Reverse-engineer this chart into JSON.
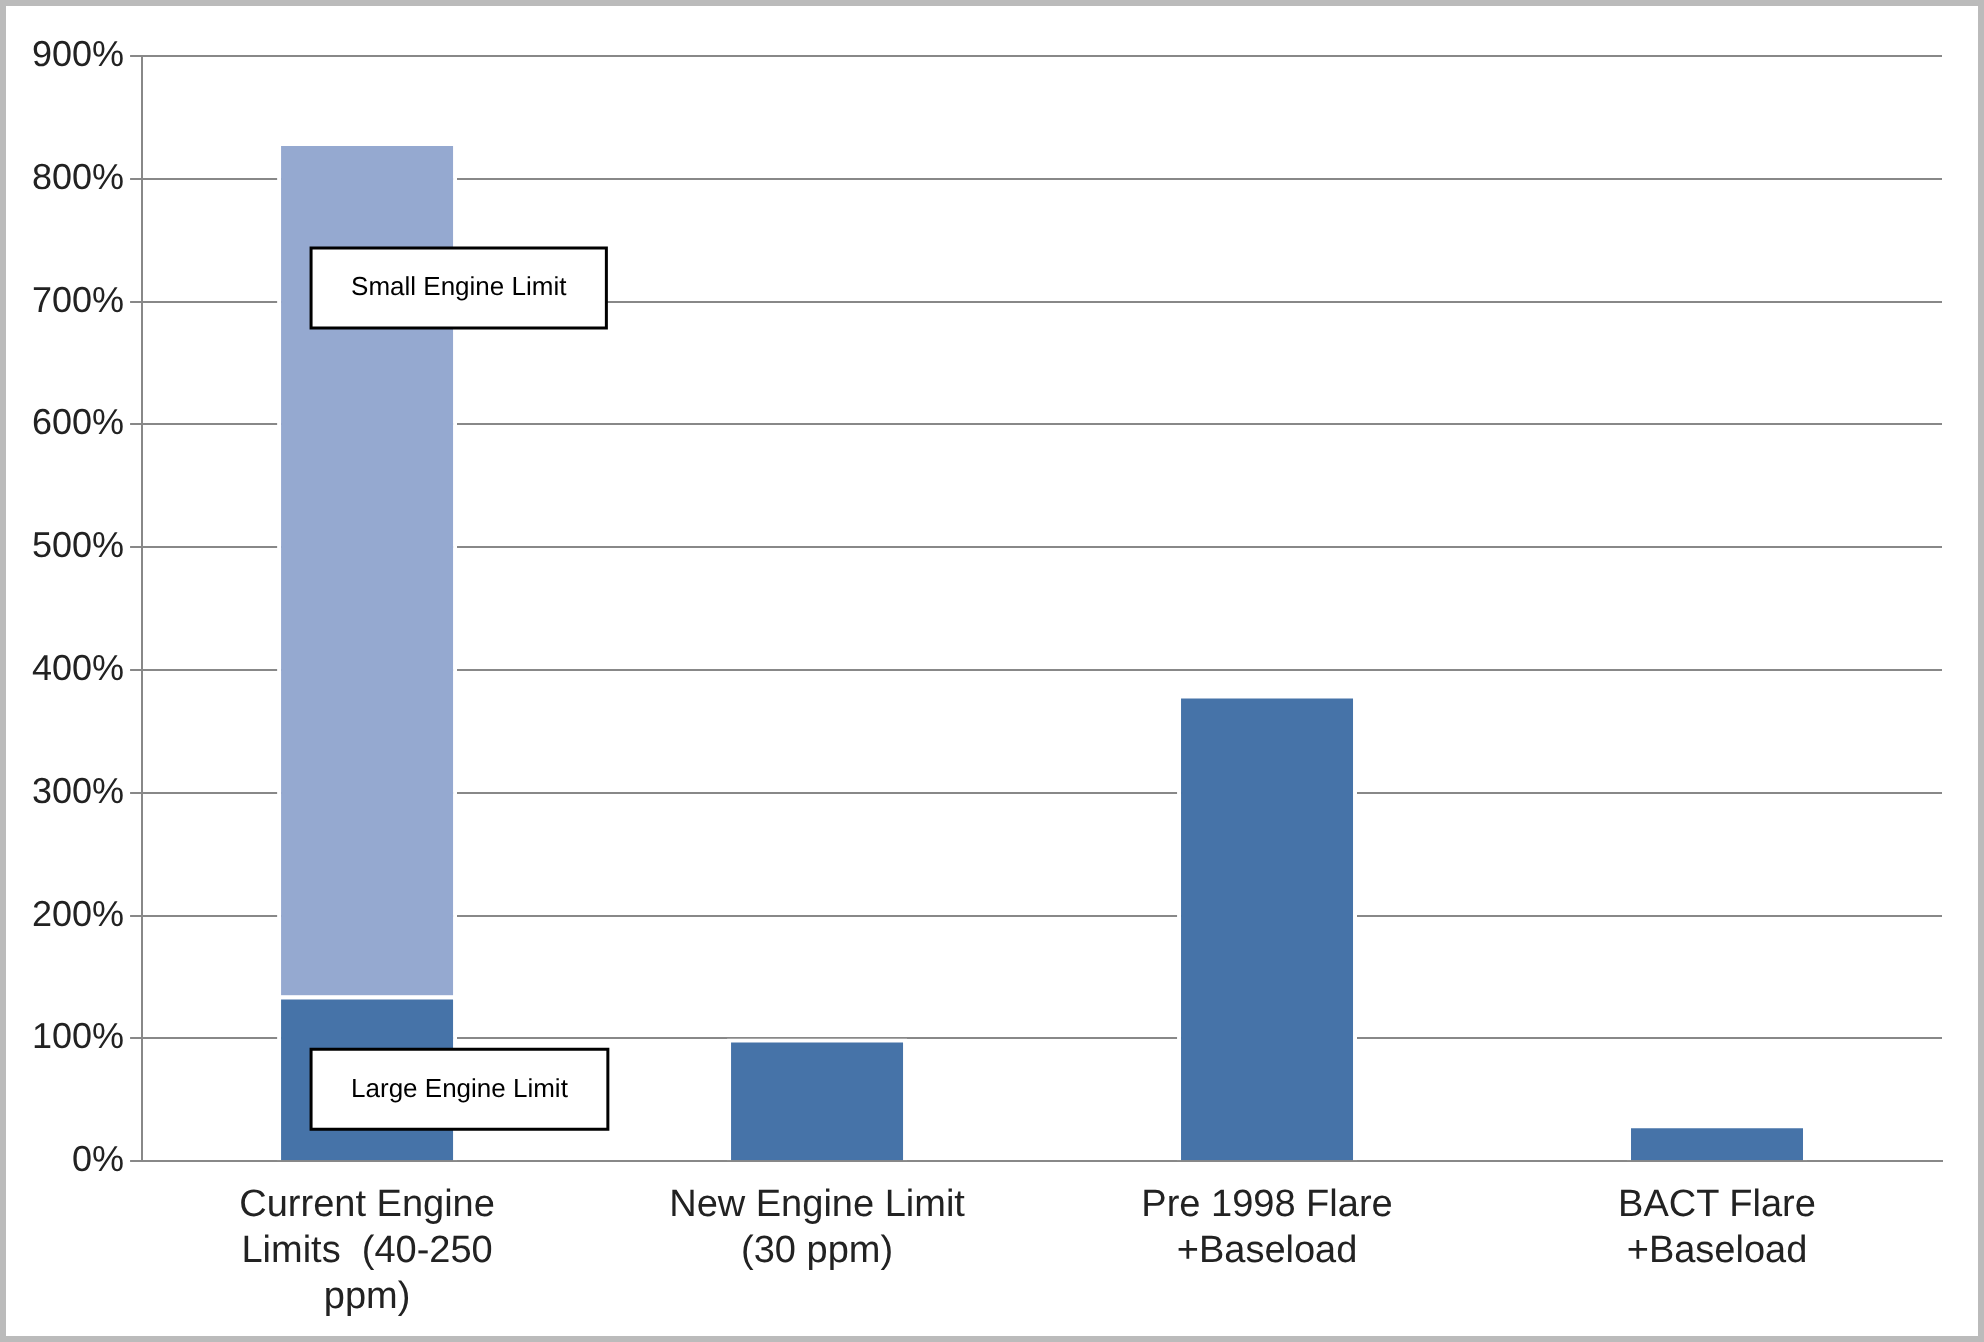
{
  "chart_data": {
    "type": "bar",
    "stacked": true,
    "categories": [
      "Current Engine Limits  (40-250 ppm)",
      "New Engine Limit (30 ppm)",
      "Pre 1998 Flare +Baseload",
      "BACT Flare +Baseload"
    ],
    "series": [
      {
        "color": "#4673a8",
        "values": [
          135,
          100,
          380,
          30
        ]
      },
      {
        "color": "#95a9d0",
        "values": [
          695,
          null,
          null,
          null
        ]
      }
    ],
    "ylim": [
      0,
      900
    ],
    "yticks": [
      {
        "value": 0,
        "label": "0%"
      },
      {
        "value": 100,
        "label": "100%"
      },
      {
        "value": 200,
        "label": "200%"
      },
      {
        "value": 300,
        "label": "300%"
      },
      {
        "value": 400,
        "label": "400%"
      },
      {
        "value": 500,
        "label": "500%"
      },
      {
        "value": 600,
        "label": "600%"
      },
      {
        "value": 700,
        "label": "700%"
      },
      {
        "value": 800,
        "label": "800%"
      },
      {
        "value": 900,
        "label": "900%"
      }
    ],
    "grid": "y",
    "legend": false,
    "annotations": [
      "Small Engine Limit",
      "Large Engine Limit"
    ]
  }
}
